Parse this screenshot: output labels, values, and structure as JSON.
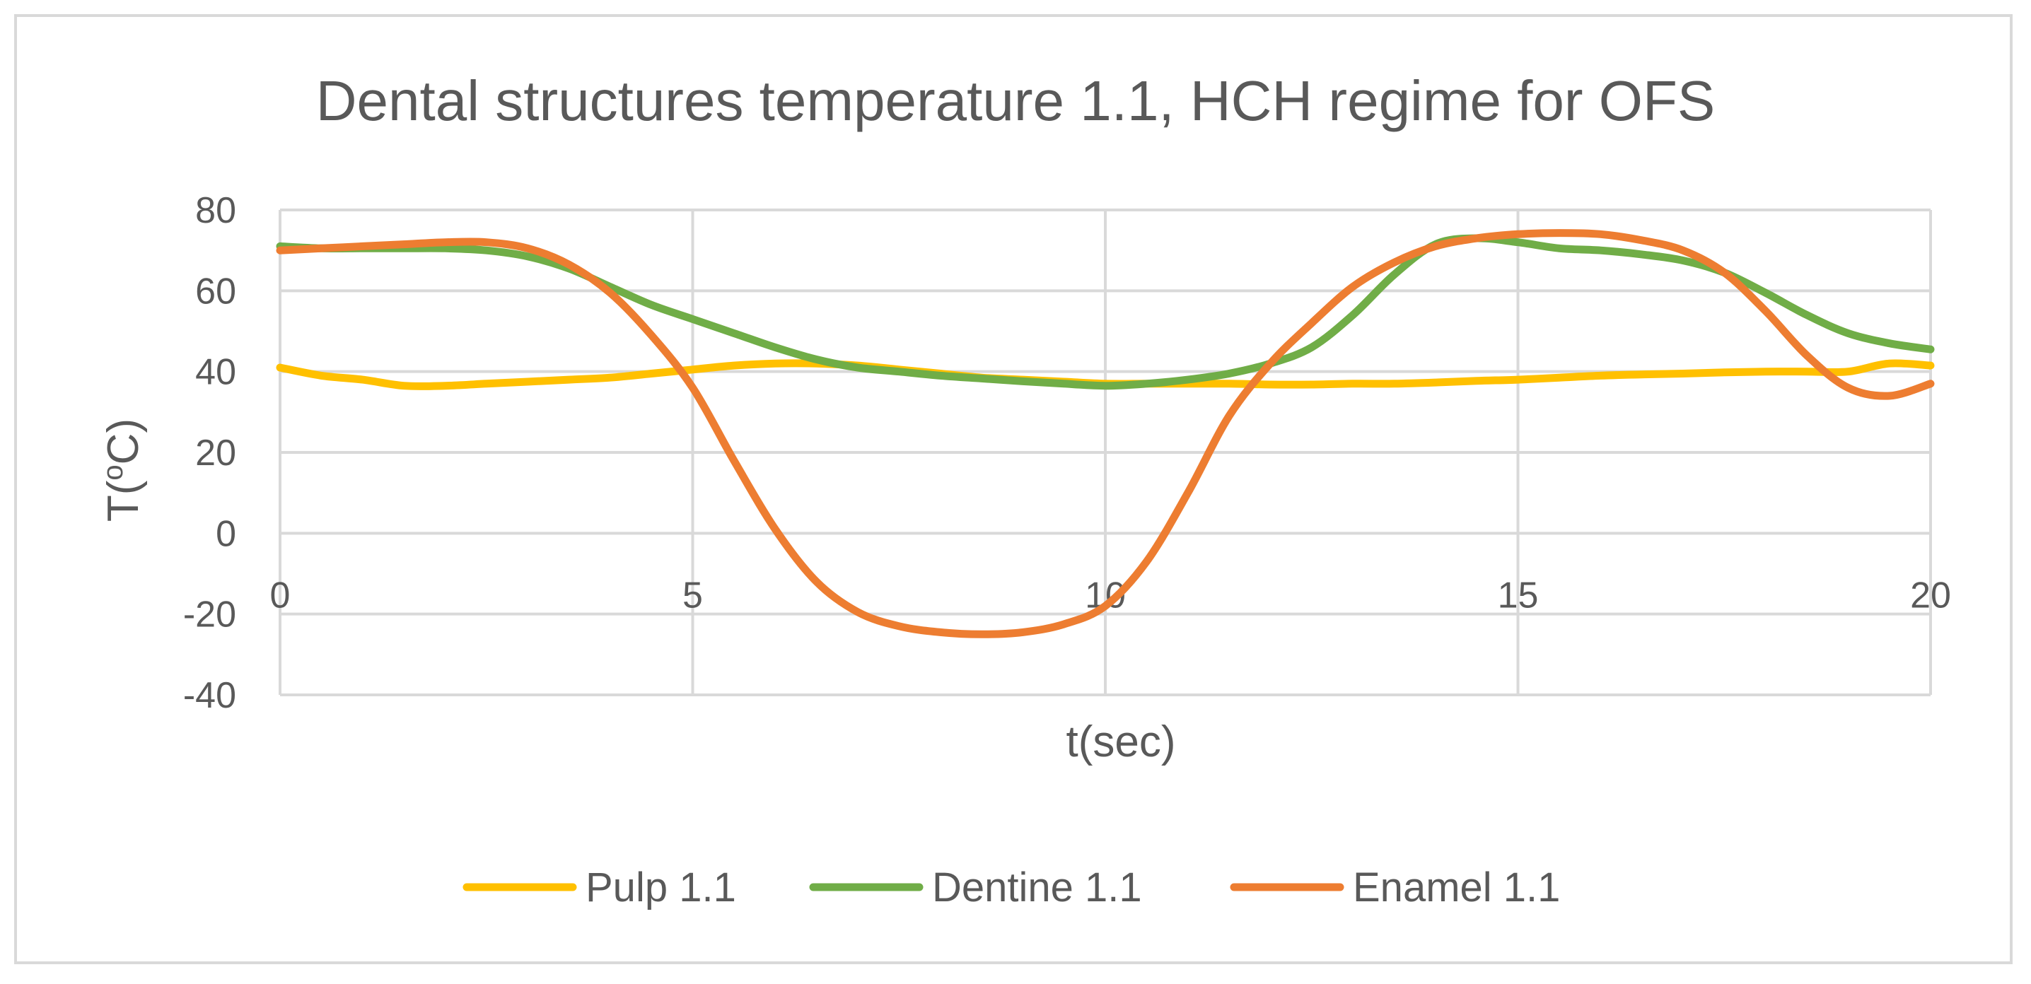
{
  "chart_data": {
    "type": "line",
    "title": "Dental structures temperature 1.1, HCH regime for OFS",
    "xlabel": "t(sec)",
    "ylabel_main": "T(",
    "ylabel_sup": "o",
    "ylabel_tail": "C)",
    "xlim": [
      0,
      20
    ],
    "ylim": [
      -40,
      80
    ],
    "x_ticks": [
      0,
      5,
      10,
      15,
      20
    ],
    "y_ticks": [
      80,
      60,
      40,
      20,
      0,
      -20,
      -40
    ],
    "grid": true,
    "legend_position": "bottom",
    "x": [
      0,
      0.5,
      1,
      1.5,
      2,
      2.5,
      3,
      3.5,
      4,
      4.5,
      5,
      5.5,
      6,
      6.5,
      7,
      7.5,
      8,
      8.5,
      9,
      9.5,
      10,
      10.5,
      11,
      11.5,
      12,
      12.5,
      13,
      13.5,
      14,
      14.5,
      15,
      15.5,
      16,
      16.5,
      17,
      17.5,
      18,
      18.5,
      19,
      19.5,
      20
    ],
    "series": [
      {
        "name": "Pulp 1.1",
        "color": "#FFC000",
        "values": [
          41,
          39,
          38,
          36.5,
          36.5,
          37,
          37.5,
          38,
          38.5,
          39.5,
          40.5,
          41.5,
          42,
          42,
          41.5,
          40.5,
          39.5,
          38.5,
          38,
          37.5,
          37,
          37,
          37,
          37,
          36.8,
          36.8,
          37,
          37,
          37.3,
          37.7,
          38,
          38.5,
          39,
          39.3,
          39.5,
          39.8,
          40,
          40,
          40,
          42,
          41.5
        ]
      },
      {
        "name": "Dentine 1.1",
        "color": "#70AD47",
        "values": [
          71,
          70.5,
          70.5,
          70.5,
          70.5,
          70,
          68.5,
          65.5,
          61,
          56.5,
          53,
          49.5,
          46,
          43,
          41,
          40,
          39,
          38.3,
          37.6,
          37,
          36.5,
          37,
          38,
          39.5,
          42,
          46,
          54,
          64,
          71.5,
          73,
          72,
          70.5,
          70,
          69,
          67.5,
          64.5,
          59.5,
          54,
          49.5,
          47,
          45.5
        ]
      },
      {
        "name": "Enamel 1.1",
        "color": "#ED7D31",
        "values": [
          70,
          70.5,
          71,
          71.5,
          72,
          72,
          70.5,
          66.5,
          59.5,
          49,
          36,
          18,
          1,
          -12,
          -19.5,
          -23,
          -24.5,
          -25,
          -24.5,
          -22.5,
          -18,
          -7,
          10,
          29,
          42,
          52,
          61,
          67,
          71,
          73,
          74,
          74.3,
          74,
          72.5,
          70,
          64.5,
          55,
          44,
          36,
          34,
          37
        ]
      }
    ]
  }
}
